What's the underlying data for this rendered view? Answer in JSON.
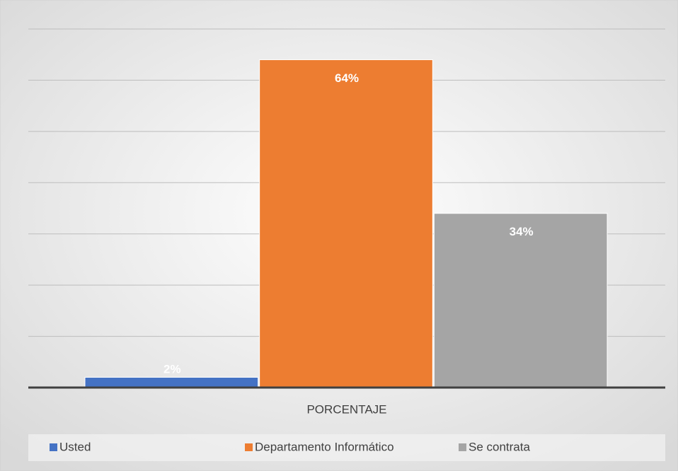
{
  "chart_data": {
    "type": "bar",
    "categories": [
      "PORCENTAJE"
    ],
    "series": [
      {
        "name": "Usted",
        "color": "#4472c4",
        "values": [
          2
        ],
        "value_labels": [
          "2%"
        ]
      },
      {
        "name": "Departamento Informático",
        "color": "#ed7d31",
        "values": [
          64
        ],
        "value_labels": [
          "64%"
        ]
      },
      {
        "name": "Se contrata",
        "color": "#a5a5a5",
        "values": [
          34
        ],
        "value_labels": [
          "34%"
        ]
      }
    ],
    "ylim": [
      0,
      70
    ],
    "yticks": [
      0,
      10,
      20,
      30,
      40,
      50,
      60,
      70
    ],
    "grid": true,
    "legend": "bottom"
  }
}
